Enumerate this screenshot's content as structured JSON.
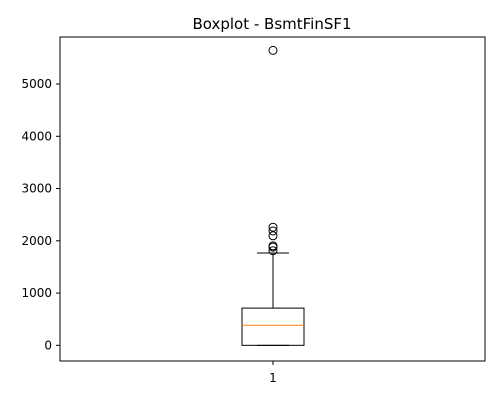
{
  "chart_data": {
    "type": "boxplot",
    "title": "Boxplot - BsmtFinSF1",
    "xlabel": "",
    "ylabel": "",
    "categories": [
      "1"
    ],
    "ylim": [
      -300,
      5900
    ],
    "yticks": [
      0,
      1000,
      2000,
      3000,
      4000,
      5000
    ],
    "grid": false,
    "box": {
      "whisker_low": 0,
      "q1": 0,
      "median": 383,
      "q3": 712,
      "whisker_high": 1767
    },
    "outliers": [
      1810,
      1880,
      1904,
      2096,
      2188,
      2260,
      5644
    ],
    "colors": {
      "box": "#000000",
      "median": "#ff7f0e",
      "background": "#ffffff"
    }
  }
}
